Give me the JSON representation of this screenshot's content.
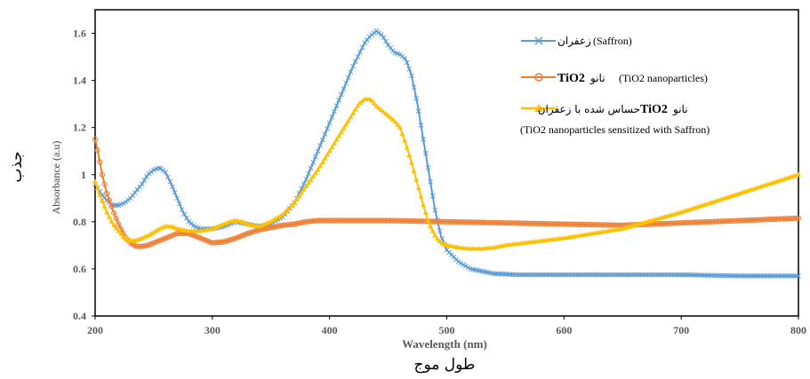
{
  "chart_data": {
    "type": "line",
    "xlabel": "Wavelength (nm)",
    "xlabel_fa": "طول موج",
    "ylabel": "Absorbance (a.u)",
    "ylabel_fa": "جذب",
    "xlim": [
      200,
      800
    ],
    "ylim": [
      0.4,
      1.7
    ],
    "xticks": [
      200,
      300,
      400,
      500,
      600,
      700,
      800
    ],
    "yticks": [
      0.4,
      0.6,
      0.8,
      1,
      1.2,
      1.4,
      1.6
    ],
    "xtick_labels": [
      "200",
      "300",
      "400",
      "500",
      "600",
      "700",
      "800"
    ],
    "ytick_labels": [
      "0.4",
      "0.6",
      "0.8",
      "1",
      "1.2",
      "1.4",
      "1.6"
    ],
    "grid": false,
    "legend_position": "top-right",
    "series": [
      {
        "name": "(Saffron)زعفران",
        "legend_text": "(Saffron)",
        "legend_fa": "زعفران",
        "color": "#5b9bd5",
        "marker": "x",
        "x": [
          200,
          205,
          210,
          215,
          220,
          225,
          230,
          235,
          240,
          245,
          250,
          255,
          260,
          265,
          270,
          275,
          280,
          285,
          290,
          300,
          310,
          320,
          330,
          340,
          350,
          360,
          370,
          380,
          390,
          400,
          410,
          420,
          430,
          435,
          440,
          445,
          450,
          455,
          460,
          465,
          470,
          475,
          480,
          485,
          490,
          495,
          500,
          510,
          520,
          530,
          540,
          560,
          580,
          600,
          650,
          700,
          750,
          800
        ],
        "y": [
          0.96,
          0.92,
          0.89,
          0.87,
          0.87,
          0.88,
          0.9,
          0.93,
          0.96,
          1.0,
          1.02,
          1.03,
          1.01,
          0.96,
          0.9,
          0.84,
          0.8,
          0.78,
          0.77,
          0.77,
          0.78,
          0.8,
          0.79,
          0.78,
          0.79,
          0.82,
          0.88,
          0.98,
          1.1,
          1.22,
          1.34,
          1.46,
          1.56,
          1.59,
          1.61,
          1.59,
          1.55,
          1.52,
          1.51,
          1.49,
          1.42,
          1.3,
          1.15,
          1.0,
          0.85,
          0.74,
          0.68,
          0.63,
          0.6,
          0.59,
          0.58,
          0.575,
          0.575,
          0.575,
          0.575,
          0.575,
          0.57,
          0.57
        ]
      },
      {
        "name": "TiO2 نانو (TiO2 nanoparticles)",
        "legend_bold": "TiO2",
        "legend_fa": "نانو",
        "legend_text": "(TiO2 nanoparticles)",
        "color": "#ed7d31",
        "marker": "circle",
        "x": [
          200,
          203,
          206,
          210,
          215,
          220,
          225,
          230,
          235,
          240,
          245,
          250,
          260,
          270,
          280,
          290,
          300,
          310,
          320,
          330,
          340,
          350,
          360,
          370,
          380,
          390,
          400,
          420,
          450,
          500,
          550,
          600,
          650,
          700,
          750,
          800
        ],
        "y": [
          1.15,
          1.08,
          1.0,
          0.92,
          0.85,
          0.79,
          0.74,
          0.71,
          0.695,
          0.695,
          0.7,
          0.71,
          0.73,
          0.75,
          0.75,
          0.73,
          0.71,
          0.715,
          0.73,
          0.75,
          0.765,
          0.775,
          0.785,
          0.79,
          0.8,
          0.805,
          0.805,
          0.805,
          0.805,
          0.8,
          0.795,
          0.79,
          0.785,
          0.795,
          0.805,
          0.815
        ]
      },
      {
        "name": "نانو TiO2حساس شده با زعفران (TiO2 nanoparticles sensitized with Saffron)",
        "legend_fa_1": "نانو",
        "legend_bold": "TiO2",
        "legend_fa_2": "حساس شده با زعفران",
        "legend_text": "(TiO2 nanoparticles sensitized with Saffron)",
        "color": "#ffc000",
        "marker": "triangle",
        "x": [
          200,
          205,
          210,
          215,
          220,
          225,
          230,
          235,
          240,
          245,
          250,
          255,
          260,
          265,
          270,
          280,
          290,
          300,
          310,
          315,
          320,
          325,
          330,
          340,
          350,
          360,
          370,
          380,
          390,
          400,
          410,
          420,
          425,
          430,
          435,
          440,
          445,
          450,
          455,
          460,
          465,
          470,
          475,
          480,
          485,
          490,
          495,
          500,
          510,
          520,
          530,
          540,
          550,
          600,
          650,
          700,
          750,
          800
        ],
        "y": [
          0.97,
          0.9,
          0.84,
          0.79,
          0.76,
          0.73,
          0.72,
          0.72,
          0.73,
          0.74,
          0.755,
          0.77,
          0.78,
          0.78,
          0.77,
          0.76,
          0.76,
          0.77,
          0.79,
          0.8,
          0.805,
          0.8,
          0.79,
          0.78,
          0.8,
          0.83,
          0.88,
          0.95,
          1.02,
          1.1,
          1.18,
          1.26,
          1.3,
          1.32,
          1.32,
          1.29,
          1.27,
          1.25,
          1.23,
          1.2,
          1.13,
          1.05,
          0.96,
          0.87,
          0.79,
          0.74,
          0.71,
          0.7,
          0.69,
          0.685,
          0.685,
          0.69,
          0.7,
          0.73,
          0.77,
          0.84,
          0.92,
          1.0
        ]
      }
    ]
  }
}
